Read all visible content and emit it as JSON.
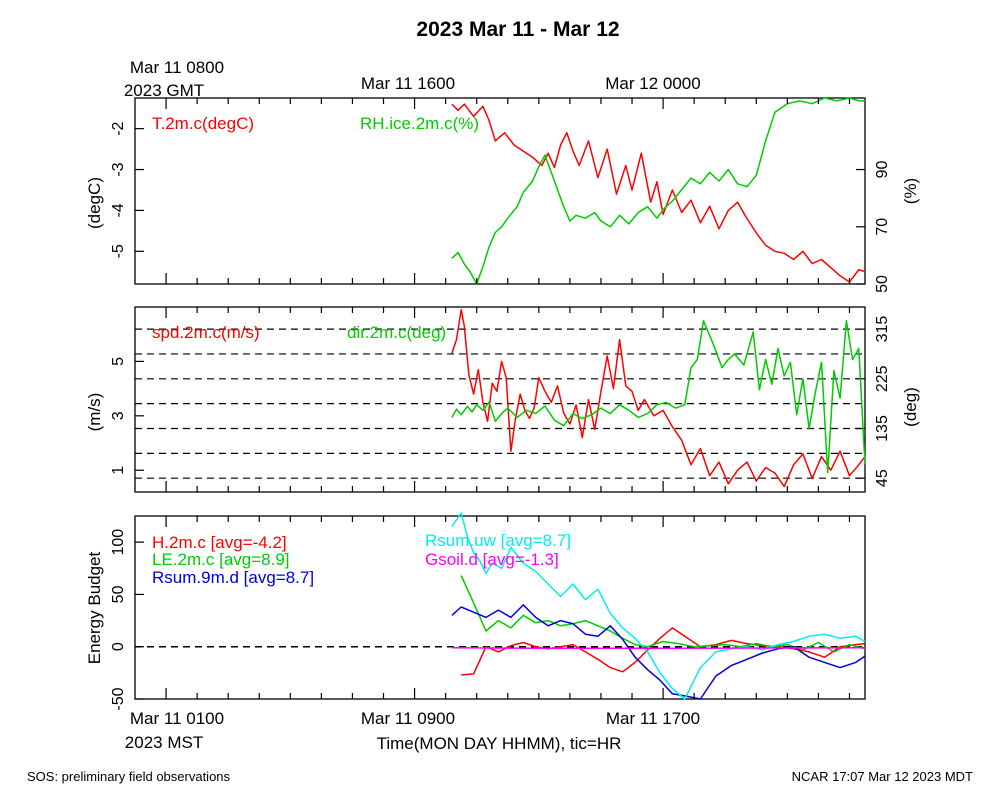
{
  "title": "2023 Mar 11 - Mar 12",
  "top_time_axis": {
    "labels": [
      {
        "text": "Mar 11 0800",
        "hour": 1
      },
      {
        "text": "Mar 11 1600",
        "hour": 9
      },
      {
        "text": "Mar 12 0000",
        "hour": 17
      }
    ],
    "zone_label": "2023 GMT"
  },
  "bottom_time_axis": {
    "labels": [
      {
        "text": "Mar 11 0100",
        "hour": 1
      },
      {
        "text": "Mar 11 0900",
        "hour": 9
      },
      {
        "text": "Mar 11 1700",
        "hour": 17
      }
    ],
    "zone_label": "2023 MST",
    "xlabel": "Time(MON DAY HHMM), tic=HR"
  },
  "footer": {
    "left": "SOS: preliminary field observations",
    "right": "NCAR 17:07 Mar 12 2023 MDT"
  },
  "colors": {
    "red": "#ff0000",
    "green": "#00cc00",
    "blue": "#0000dd",
    "cyan": "#00eeee",
    "magenta": "#ff00ff",
    "black": "#000000"
  },
  "chart_data": [
    {
      "type": "line",
      "x_unit": "hours since Mar 11 0000 MST",
      "xlim": [
        0,
        23.5
      ],
      "ylabel": "(degC)",
      "ylim": [
        -5.8,
        -1.25
      ],
      "yticks": [
        -5,
        -4,
        -3,
        -2
      ],
      "y2label": "(%)",
      "y2lim": [
        50,
        115
      ],
      "y2ticks": [
        50,
        70,
        90
      ],
      "grid": false,
      "series": [
        {
          "name": "T.2m.c(degC)",
          "color": "red",
          "axis": "left",
          "x": [
            10.2,
            10.4,
            10.6,
            10.9,
            11.2,
            11.4,
            11.6,
            11.9,
            12.2,
            12.5,
            12.8,
            13.1,
            13.3,
            13.5,
            13.7,
            13.9,
            14.1,
            14.3,
            14.6,
            14.9,
            15.2,
            15.5,
            15.8,
            16.0,
            16.3,
            16.6,
            16.8,
            17.0,
            17.3,
            17.6,
            17.9,
            18.2,
            18.5,
            18.8,
            19.1,
            19.4,
            19.7,
            20.0,
            20.3,
            20.6,
            20.9,
            21.2,
            21.5,
            21.8,
            22.1,
            22.4,
            22.7,
            23.0,
            23.3,
            23.5
          ],
          "y": [
            -1.4,
            -1.55,
            -1.4,
            -1.7,
            -1.45,
            -1.8,
            -2.3,
            -2.1,
            -2.4,
            -2.55,
            -2.7,
            -2.9,
            -2.6,
            -2.95,
            -2.4,
            -2.1,
            -2.55,
            -2.9,
            -2.3,
            -3.2,
            -2.5,
            -3.6,
            -2.9,
            -3.5,
            -2.6,
            -3.8,
            -3.3,
            -4.1,
            -3.5,
            -4.05,
            -3.75,
            -4.3,
            -3.9,
            -4.45,
            -4.0,
            -3.8,
            -4.2,
            -4.55,
            -4.85,
            -5.0,
            -5.05,
            -5.2,
            -5.0,
            -5.3,
            -5.2,
            -5.4,
            -5.6,
            -5.75,
            -5.45,
            -5.5
          ]
        },
        {
          "name": "RH.ice.2m.c(%)",
          "color": "green",
          "axis": "right",
          "x": [
            10.2,
            10.4,
            10.6,
            10.8,
            10.9,
            11.0,
            11.2,
            11.4,
            11.6,
            11.8,
            12.0,
            12.3,
            12.5,
            12.8,
            13.0,
            13.2,
            13.4,
            13.6,
            13.8,
            14.0,
            14.2,
            14.5,
            14.8,
            15.0,
            15.3,
            15.6,
            15.9,
            16.2,
            16.5,
            16.8,
            17.0,
            17.3,
            17.6,
            17.9,
            18.2,
            18.5,
            18.8,
            19.1,
            19.4,
            19.7,
            20.0,
            20.3,
            20.6,
            21.0,
            21.4,
            21.8,
            22.2,
            22.6,
            23.0,
            23.3,
            23.5
          ],
          "y": [
            59,
            61,
            57,
            54,
            52,
            50,
            56,
            63,
            68,
            70,
            73,
            77,
            82,
            86,
            91,
            95,
            89,
            83,
            77,
            72,
            74,
            73,
            75,
            72,
            70,
            74,
            71,
            75,
            77,
            73,
            76,
            79,
            83,
            87,
            85,
            89,
            86,
            90,
            85,
            84,
            88,
            100,
            110,
            113,
            114,
            113,
            115,
            114,
            115,
            114,
            114
          ]
        }
      ]
    },
    {
      "type": "line",
      "x_unit": "hours since Mar 11 0000 MST",
      "xlim": [
        0,
        23.5
      ],
      "ylabel": "(m/s)",
      "ylim": [
        0.2,
        7.0
      ],
      "yticks": [
        1,
        3,
        5
      ],
      "y2label": "(deg)",
      "y2lim": [
        20,
        355
      ],
      "y2ticks": [
        45,
        135,
        225,
        315
      ],
      "dashed_lines_deg": [
        45,
        90,
        135,
        180,
        225,
        270,
        315
      ],
      "series": [
        {
          "name": "spd.2m.c(m/s)",
          "color": "red",
          "axis": "left",
          "x": [
            10.2,
            10.35,
            10.5,
            10.6,
            10.75,
            10.9,
            11.05,
            11.2,
            11.35,
            11.5,
            11.65,
            11.8,
            11.95,
            12.1,
            12.25,
            12.4,
            12.55,
            12.7,
            12.85,
            13.0,
            13.2,
            13.4,
            13.6,
            13.8,
            14.0,
            14.2,
            14.4,
            14.6,
            14.8,
            15.0,
            15.2,
            15.4,
            15.6,
            15.8,
            16.0,
            16.2,
            16.4,
            16.7,
            17.0,
            17.3,
            17.6,
            17.9,
            18.2,
            18.5,
            18.8,
            19.1,
            19.4,
            19.7,
            20.0,
            20.3,
            20.6,
            20.9,
            21.2,
            21.5,
            21.8,
            22.1,
            22.4,
            22.7,
            23.0,
            23.3,
            23.5
          ],
          "y": [
            5.3,
            5.8,
            6.9,
            6.3,
            4.5,
            3.8,
            4.7,
            3.5,
            2.8,
            4.2,
            3.9,
            5.0,
            4.4,
            1.7,
            2.9,
            3.8,
            3.2,
            2.9,
            3.3,
            4.4,
            3.9,
            3.5,
            4.1,
            3.1,
            2.7,
            3.4,
            2.2,
            3.6,
            2.5,
            3.9,
            5.2,
            4.0,
            5.8,
            4.1,
            3.9,
            3.2,
            3.6,
            3.0,
            3.2,
            2.6,
            2.1,
            1.2,
            1.8,
            0.8,
            1.3,
            0.5,
            1.0,
            1.3,
            0.6,
            1.1,
            0.9,
            0.4,
            1.2,
            1.6,
            0.7,
            1.5,
            1.0,
            1.7,
            0.8,
            1.2,
            1.5
          ]
        },
        {
          "name": "dir.2m.c(deg)",
          "color": "green",
          "axis": "right",
          "x": [
            10.2,
            10.35,
            10.5,
            10.7,
            10.85,
            11.0,
            11.2,
            11.4,
            11.6,
            11.8,
            12.0,
            12.3,
            12.6,
            12.9,
            13.2,
            13.5,
            13.8,
            14.1,
            14.4,
            14.7,
            15.0,
            15.3,
            15.6,
            15.9,
            16.2,
            16.5,
            16.8,
            17.1,
            17.4,
            17.7,
            17.9,
            18.1,
            18.3,
            18.6,
            18.9,
            19.1,
            19.3,
            19.6,
            19.9,
            20.1,
            20.3,
            20.5,
            20.7,
            20.9,
            21.1,
            21.3,
            21.5,
            21.7,
            21.9,
            22.1,
            22.3,
            22.5,
            22.7,
            22.9,
            23.1,
            23.3,
            23.5
          ],
          "y": [
            155,
            170,
            160,
            175,
            165,
            178,
            168,
            183,
            148,
            162,
            172,
            155,
            168,
            162,
            176,
            150,
            140,
            162,
            153,
            160,
            172,
            162,
            178,
            168,
            155,
            162,
            178,
            182,
            172,
            178,
            245,
            260,
            330,
            290,
            245,
            260,
            270,
            250,
            310,
            205,
            260,
            215,
            280,
            230,
            255,
            160,
            225,
            135,
            200,
            255,
            55,
            240,
            190,
            330,
            260,
            280,
            70
          ]
        }
      ]
    },
    {
      "type": "line",
      "x_unit": "hours since Mar 11 0000 MST",
      "xlim": [
        0,
        23.5
      ],
      "ylabel": "Energy Budget",
      "ylim": [
        -50,
        125
      ],
      "yticks": [
        -50,
        0,
        50,
        100
      ],
      "zero_line": "dashed",
      "series": [
        {
          "name": "H.2m.c",
          "avg_label": "[avg=-4.2]",
          "color": "red",
          "x": [
            10.5,
            10.9,
            11.3,
            11.7,
            12.1,
            12.5,
            12.9,
            13.3,
            13.7,
            14.1,
            14.5,
            14.9,
            15.3,
            15.7,
            16.1,
            16.5,
            16.9,
            17.3,
            17.7,
            18.2,
            18.7,
            19.2,
            19.7,
            20.2,
            20.7,
            21.2,
            21.7,
            22.2,
            22.7,
            23.2,
            23.5
          ],
          "y": [
            -27,
            -26,
            0,
            -5,
            1,
            4,
            0,
            -2,
            0,
            2,
            -5,
            -12,
            -20,
            -24,
            -15,
            -3,
            8,
            18,
            10,
            0,
            2,
            6,
            3,
            1,
            0,
            -2,
            -5,
            -10,
            0,
            2,
            3
          ]
        },
        {
          "name": "LE.2m.c",
          "avg_label": "[avg=8.9]",
          "color": "green",
          "x": [
            10.5,
            10.9,
            11.3,
            11.7,
            12.1,
            12.5,
            12.9,
            13.3,
            13.7,
            14.1,
            14.5,
            14.9,
            15.3,
            15.7,
            16.1,
            16.5,
            17.0,
            17.5,
            18.0,
            18.5,
            19.0,
            19.5,
            20.0,
            20.5,
            21.0,
            21.5,
            22.0,
            22.5,
            23.0,
            23.5
          ],
          "y": [
            68,
            42,
            15,
            25,
            18,
            30,
            23,
            25,
            20,
            22,
            25,
            20,
            15,
            8,
            2,
            0,
            5,
            3,
            0,
            1,
            2,
            0,
            3,
            0,
            2,
            -3,
            4,
            -5,
            2,
            -2
          ]
        },
        {
          "name": "Rsum.9m.d",
          "avg_label": "[avg=8.7]",
          "color": "blue",
          "x": [
            10.2,
            10.5,
            10.9,
            11.3,
            11.7,
            12.1,
            12.5,
            12.9,
            13.3,
            13.7,
            14.1,
            14.5,
            14.9,
            15.3,
            15.7,
            16.1,
            16.5,
            16.9,
            17.3,
            17.7,
            18.2,
            18.7,
            19.2,
            19.7,
            20.2,
            20.7,
            21.2,
            21.7,
            22.2,
            22.7,
            23.2,
            23.5
          ],
          "y": [
            30,
            38,
            33,
            28,
            35,
            28,
            40,
            28,
            20,
            25,
            22,
            12,
            10,
            20,
            7,
            -10,
            -22,
            -32,
            -45,
            -47,
            -50,
            -28,
            -18,
            -12,
            -6,
            -2,
            0,
            -10,
            -15,
            -20,
            -15,
            -9
          ]
        },
        {
          "name": "Rsum.uw",
          "avg_label": "[avg=8.7]",
          "color": "cyan",
          "x": [
            10.2,
            10.5,
            10.7,
            10.9,
            11.1,
            11.3,
            11.5,
            11.8,
            12.1,
            12.5,
            12.9,
            13.3,
            13.7,
            14.1,
            14.5,
            14.9,
            15.3,
            15.7,
            16.1,
            16.5,
            16.9,
            17.3,
            17.7,
            18.2,
            18.7,
            19.2,
            19.7,
            20.2,
            20.7,
            21.2,
            21.7,
            22.2,
            22.7,
            23.2,
            23.5
          ],
          "y": [
            115,
            128,
            105,
            90,
            82,
            70,
            80,
            75,
            95,
            80,
            72,
            60,
            48,
            60,
            45,
            55,
            32,
            18,
            8,
            -5,
            -25,
            -40,
            -50,
            -20,
            -5,
            -2,
            0,
            -3,
            2,
            5,
            10,
            12,
            8,
            10,
            5
          ]
        },
        {
          "name": "Gsoil.d",
          "avg_label": "[avg=-1.3]",
          "color": "magenta",
          "x": [
            10.2,
            11.5,
            13.0,
            14.5,
            16.0,
            17.5,
            19.0,
            20.5,
            22.0,
            23.5
          ],
          "y": [
            -1.0,
            -1.2,
            -1.4,
            -1.5,
            -1.5,
            -1.4,
            -1.3,
            -1.2,
            -1.1,
            -1.0
          ]
        }
      ]
    }
  ]
}
